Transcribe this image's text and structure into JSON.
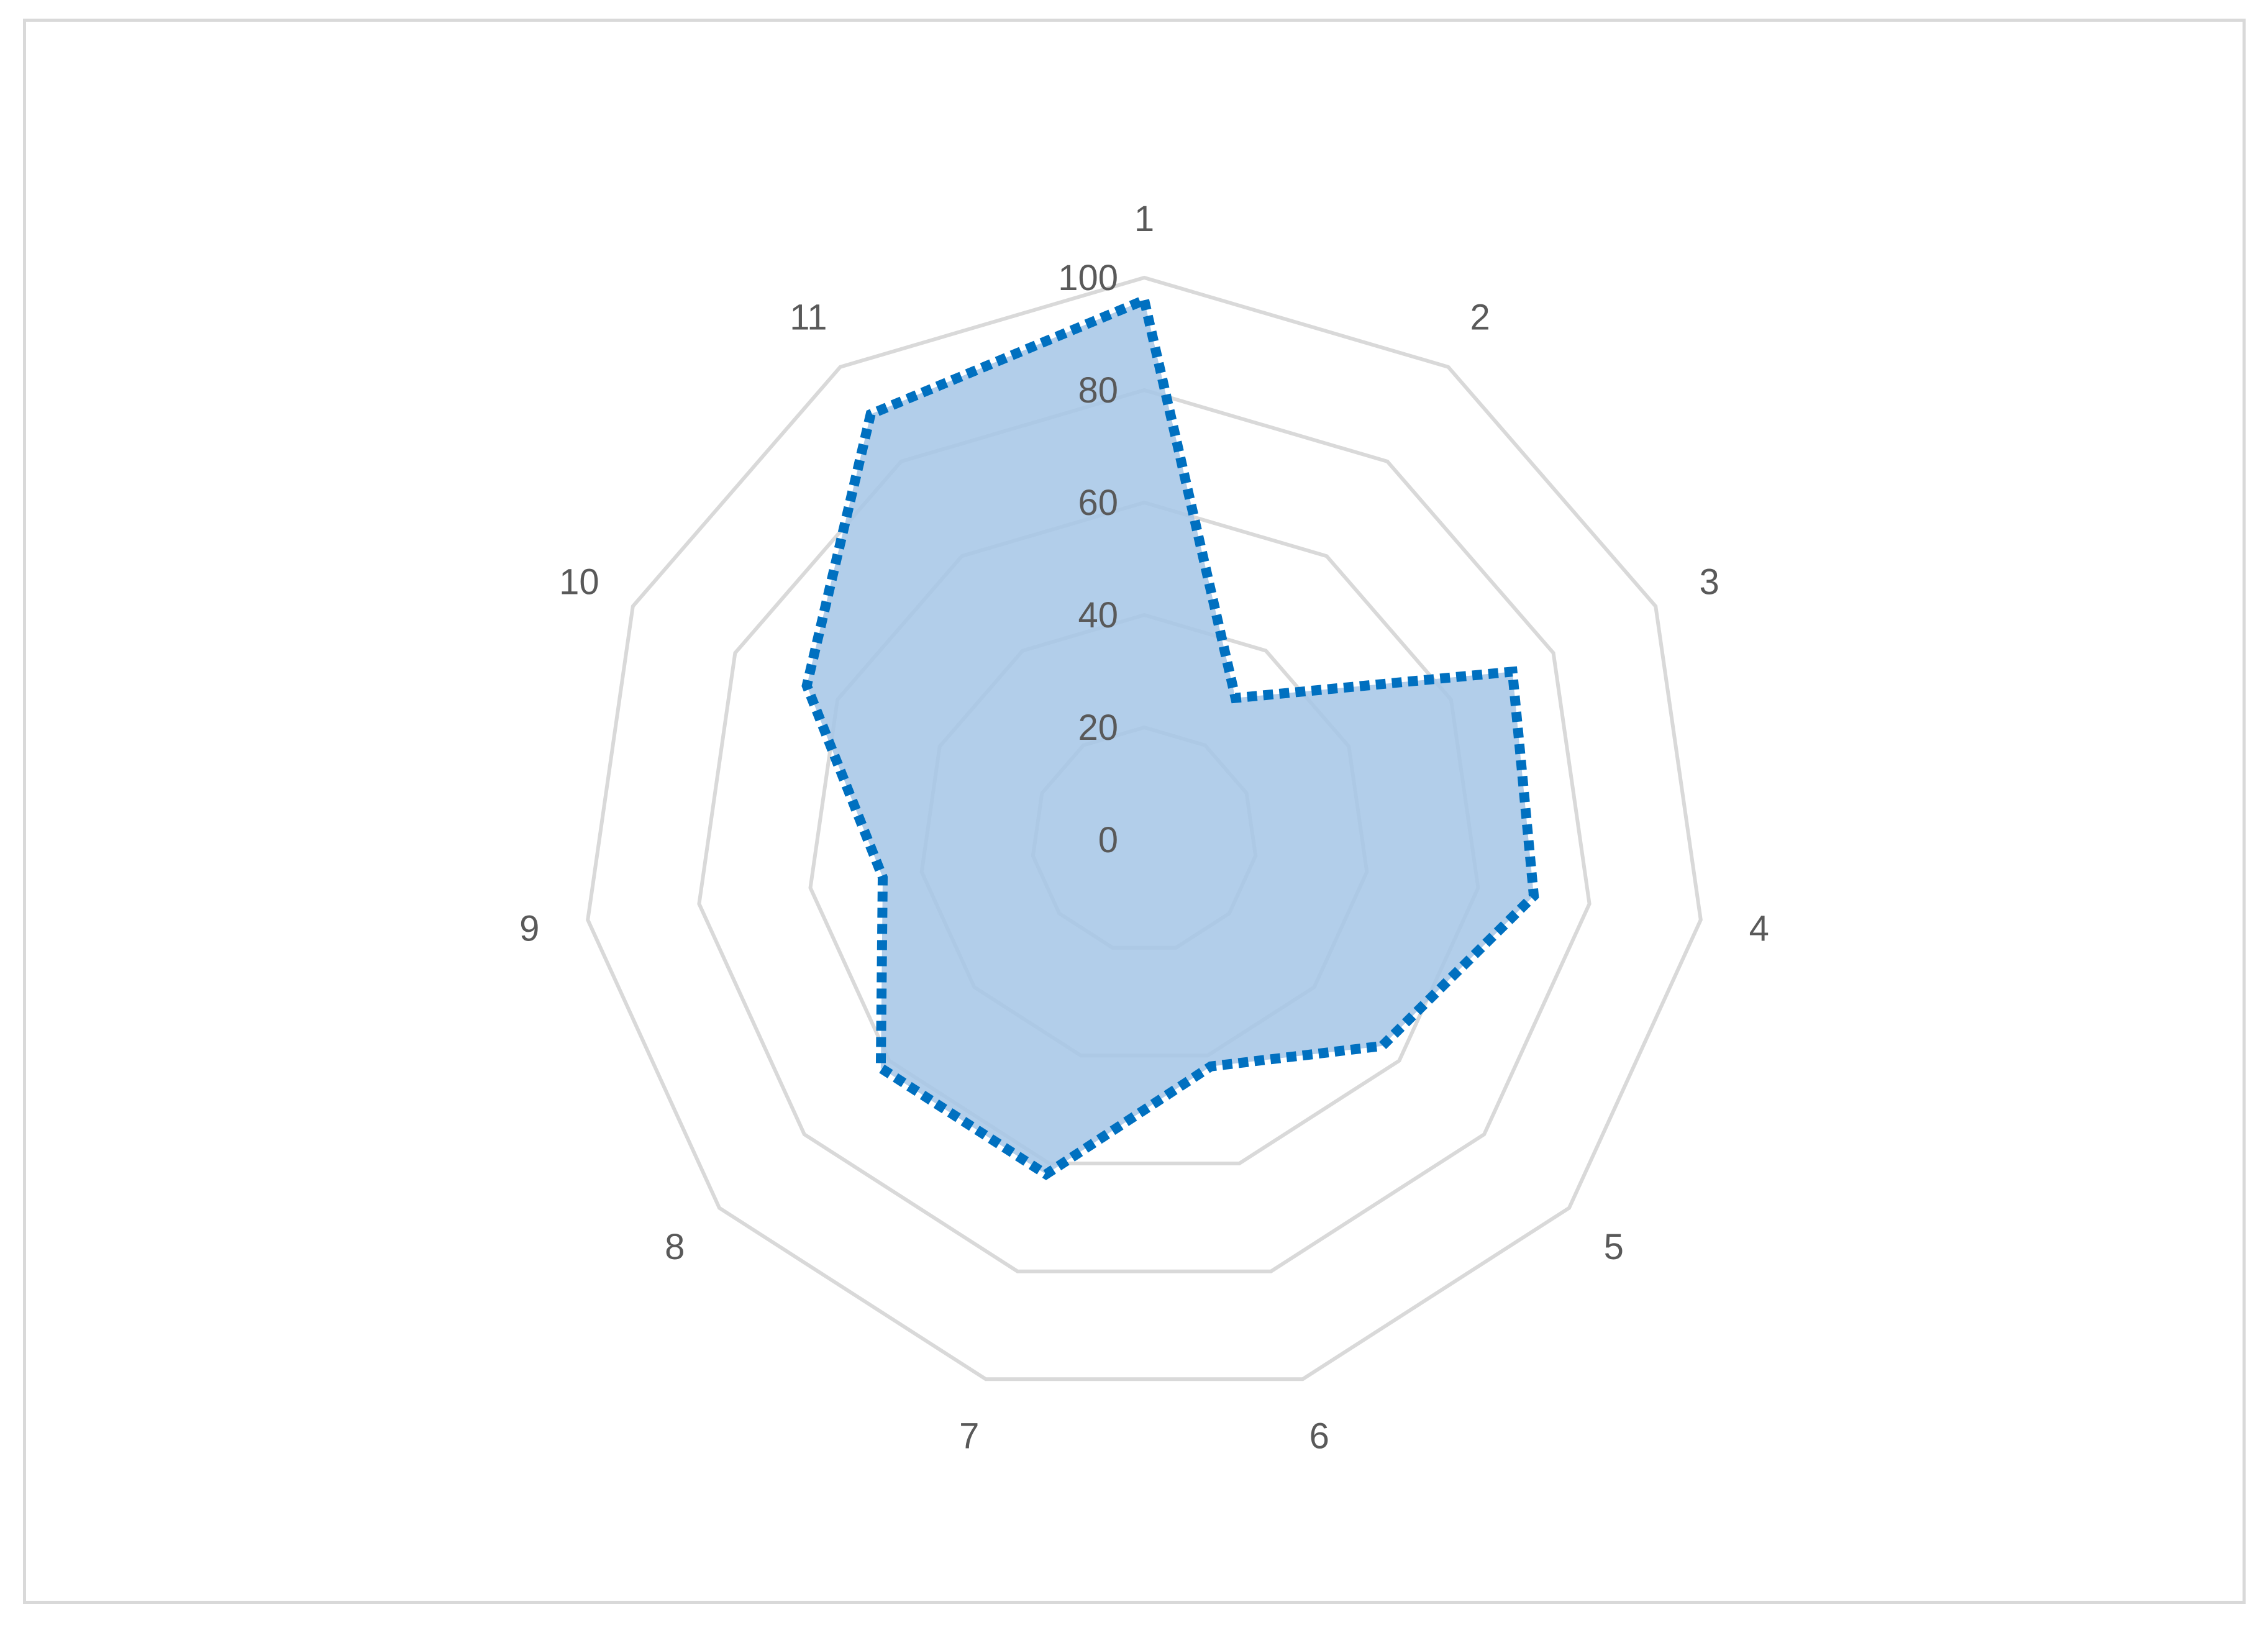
{
  "chart_data": {
    "type": "radar",
    "title": "",
    "categories": [
      "1",
      "2",
      "3",
      "4",
      "5",
      "6",
      "7",
      "8",
      "9",
      "10",
      "11"
    ],
    "series": [
      {
        "values": [
          96,
          30,
          72,
          70,
          56,
          42,
          62,
          62,
          47,
          66,
          90
        ],
        "color": "#0070c0",
        "fill": "#a5c6e6",
        "line_style": "dotted"
      }
    ],
    "rlim": [
      0,
      100
    ],
    "ticks": [
      0,
      20,
      40,
      60,
      80,
      100
    ],
    "tick_labels": [
      "0",
      "20",
      "40",
      "60",
      "80",
      "100"
    ],
    "grid": true,
    "legend": "none"
  }
}
